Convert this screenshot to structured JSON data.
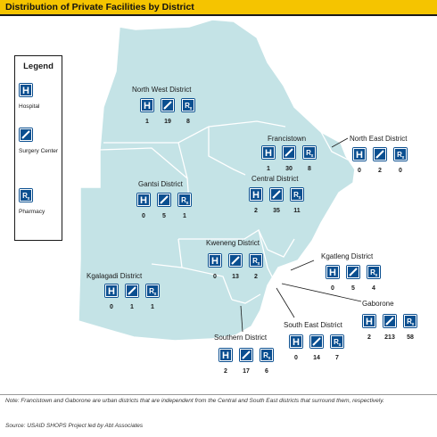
{
  "title": "Distribution of Private Facilities by District",
  "legend": {
    "title": "Legend",
    "items": [
      {
        "icon": "hospital-icon",
        "label": "Hospital"
      },
      {
        "icon": "surgery-center-icon",
        "label": "Surgery Center"
      },
      {
        "icon": "pharmacy-icon",
        "label": "Pharmacy"
      }
    ]
  },
  "colors": {
    "map_fill": "#c4e3e6",
    "map_stroke": "#ffffff",
    "icon": "#0b4f90",
    "title_bar": "#f5c400"
  },
  "districts": [
    {
      "id": "north-west",
      "name": "North West District",
      "hospital": "1",
      "surgery": "19",
      "pharmacy": "8"
    },
    {
      "id": "francistown",
      "name": "Francistown",
      "hospital": "1",
      "surgery": "30",
      "pharmacy": "8"
    },
    {
      "id": "north-east",
      "name": "North East District",
      "hospital": "0",
      "surgery": "2",
      "pharmacy": "0"
    },
    {
      "id": "gantsi",
      "name": "Gantsi District",
      "hospital": "0",
      "surgery": "5",
      "pharmacy": "1"
    },
    {
      "id": "central",
      "name": "Central District",
      "hospital": "2",
      "surgery": "35",
      "pharmacy": "11"
    },
    {
      "id": "kweneng",
      "name": "Kweneng District",
      "hospital": "0",
      "surgery": "13",
      "pharmacy": "2"
    },
    {
      "id": "kgatleng",
      "name": "Kgatleng District",
      "hospital": "0",
      "surgery": "5",
      "pharmacy": "4"
    },
    {
      "id": "kgalagadi",
      "name": "Kgalagadi District",
      "hospital": "0",
      "surgery": "1",
      "pharmacy": "1"
    },
    {
      "id": "gaborone",
      "name": "Gaborone",
      "hospital": "2",
      "surgery": "213",
      "pharmacy": "58"
    },
    {
      "id": "south-east",
      "name": "South East District",
      "hospital": "0",
      "surgery": "14",
      "pharmacy": "7"
    },
    {
      "id": "southern",
      "name": "Southern District",
      "hospital": "2",
      "surgery": "17",
      "pharmacy": "6"
    }
  ],
  "note": "Note: Francistown and Gaborone are urban districts that are independent from the Central and South East districts that surround them, respectively.",
  "source": "Source: USAID SHOPS Project led by Abt Associates"
}
